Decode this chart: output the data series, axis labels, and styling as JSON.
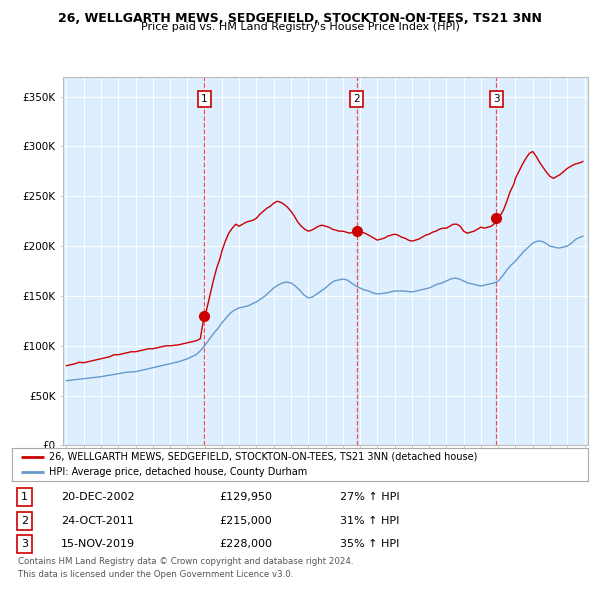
{
  "title": "26, WELLGARTH MEWS, SEDGEFIELD, STOCKTON-ON-TEES, TS21 3NN",
  "subtitle": "Price paid vs. HM Land Registry's House Price Index (HPI)",
  "legend_line1": "26, WELLGARTH MEWS, SEDGEFIELD, STOCKTON-ON-TEES, TS21 3NN (detached house)",
  "legend_line2": "HPI: Average price, detached house, County Durham",
  "footer1": "Contains HM Land Registry data © Crown copyright and database right 2024.",
  "footer2": "This data is licensed under the Open Government Licence v3.0.",
  "ylim": [
    0,
    370000
  ],
  "yticks": [
    0,
    50000,
    100000,
    150000,
    200000,
    250000,
    300000,
    350000
  ],
  "ytick_labels": [
    "£0",
    "£50K",
    "£100K",
    "£150K",
    "£200K",
    "£250K",
    "£300K",
    "£350K"
  ],
  "sale_color": "#cc0000",
  "hpi_color": "#6699cc",
  "bg_color": "#ddeeff",
  "vline_color": "#ee3333",
  "transactions": [
    {
      "num": 1,
      "date_label": "20-DEC-2002",
      "date_x": 2002.97,
      "price": 129950,
      "pct": "27%",
      "direction": "↑"
    },
    {
      "num": 2,
      "date_label": "24-OCT-2011",
      "date_x": 2011.81,
      "price": 215000,
      "pct": "31%",
      "direction": "↑"
    },
    {
      "num": 3,
      "date_label": "15-NOV-2019",
      "date_x": 2019.88,
      "price": 228000,
      "pct": "35%",
      "direction": "↑"
    }
  ],
  "sale_prices": [
    [
      1995.0,
      80000
    ],
    [
      1995.25,
      81000
    ],
    [
      1995.5,
      82000
    ],
    [
      1995.75,
      83500
    ],
    [
      1996.0,
      83000
    ],
    [
      1996.25,
      84000
    ],
    [
      1996.5,
      85000
    ],
    [
      1996.75,
      86000
    ],
    [
      1997.0,
      87000
    ],
    [
      1997.25,
      88000
    ],
    [
      1997.5,
      89000
    ],
    [
      1997.75,
      91000
    ],
    [
      1998.0,
      91000
    ],
    [
      1998.25,
      92000
    ],
    [
      1998.5,
      93000
    ],
    [
      1998.75,
      94000
    ],
    [
      1999.0,
      94000
    ],
    [
      1999.25,
      95000
    ],
    [
      1999.5,
      96000
    ],
    [
      1999.75,
      97000
    ],
    [
      2000.0,
      97000
    ],
    [
      2000.25,
      98000
    ],
    [
      2000.5,
      99000
    ],
    [
      2000.75,
      100000
    ],
    [
      2001.0,
      100000
    ],
    [
      2001.25,
      100500
    ],
    [
      2001.5,
      101000
    ],
    [
      2001.75,
      102000
    ],
    [
      2002.0,
      103000
    ],
    [
      2002.25,
      104000
    ],
    [
      2002.5,
      105000
    ],
    [
      2002.75,
      107000
    ],
    [
      2002.97,
      129950
    ],
    [
      2003.1,
      135000
    ],
    [
      2003.3,
      150000
    ],
    [
      2003.5,
      165000
    ],
    [
      2003.7,
      178000
    ],
    [
      2003.9,
      188000
    ],
    [
      2004.0,
      195000
    ],
    [
      2004.2,
      205000
    ],
    [
      2004.4,
      213000
    ],
    [
      2004.6,
      218000
    ],
    [
      2004.8,
      222000
    ],
    [
      2005.0,
      220000
    ],
    [
      2005.2,
      222000
    ],
    [
      2005.4,
      224000
    ],
    [
      2005.6,
      225000
    ],
    [
      2005.8,
      226000
    ],
    [
      2006.0,
      228000
    ],
    [
      2006.2,
      232000
    ],
    [
      2006.4,
      235000
    ],
    [
      2006.6,
      238000
    ],
    [
      2006.8,
      240000
    ],
    [
      2007.0,
      243000
    ],
    [
      2007.2,
      245000
    ],
    [
      2007.4,
      244000
    ],
    [
      2007.6,
      242000
    ],
    [
      2007.8,
      239000
    ],
    [
      2008.0,
      235000
    ],
    [
      2008.2,
      230000
    ],
    [
      2008.4,
      224000
    ],
    [
      2008.6,
      220000
    ],
    [
      2008.8,
      217000
    ],
    [
      2009.0,
      215000
    ],
    [
      2009.2,
      216000
    ],
    [
      2009.4,
      218000
    ],
    [
      2009.6,
      220000
    ],
    [
      2009.8,
      221000
    ],
    [
      2010.0,
      220000
    ],
    [
      2010.2,
      219000
    ],
    [
      2010.4,
      217000
    ],
    [
      2010.6,
      216000
    ],
    [
      2010.8,
      215000
    ],
    [
      2011.0,
      215000
    ],
    [
      2011.2,
      214000
    ],
    [
      2011.4,
      213000
    ],
    [
      2011.6,
      214000
    ],
    [
      2011.81,
      215000
    ],
    [
      2012.0,
      215000
    ],
    [
      2012.2,
      213500
    ],
    [
      2012.4,
      212000
    ],
    [
      2012.6,
      210000
    ],
    [
      2012.8,
      208000
    ],
    [
      2013.0,
      206000
    ],
    [
      2013.2,
      207000
    ],
    [
      2013.4,
      208000
    ],
    [
      2013.6,
      210000
    ],
    [
      2013.8,
      211000
    ],
    [
      2014.0,
      212000
    ],
    [
      2014.2,
      211000
    ],
    [
      2014.4,
      209000
    ],
    [
      2014.6,
      208000
    ],
    [
      2014.8,
      206000
    ],
    [
      2015.0,
      205000
    ],
    [
      2015.2,
      206000
    ],
    [
      2015.4,
      207000
    ],
    [
      2015.6,
      209000
    ],
    [
      2015.8,
      211000
    ],
    [
      2016.0,
      212000
    ],
    [
      2016.2,
      214000
    ],
    [
      2016.4,
      215000
    ],
    [
      2016.6,
      217000
    ],
    [
      2016.8,
      218000
    ],
    [
      2017.0,
      218000
    ],
    [
      2017.2,
      220000
    ],
    [
      2017.4,
      222000
    ],
    [
      2017.6,
      222000
    ],
    [
      2017.8,
      220000
    ],
    [
      2018.0,
      215000
    ],
    [
      2018.2,
      213000
    ],
    [
      2018.4,
      214000
    ],
    [
      2018.6,
      215000
    ],
    [
      2018.8,
      217000
    ],
    [
      2019.0,
      219000
    ],
    [
      2019.2,
      218000
    ],
    [
      2019.4,
      219000
    ],
    [
      2019.6,
      220000
    ],
    [
      2019.75,
      222000
    ],
    [
      2019.88,
      228000
    ],
    [
      2020.1,
      230000
    ],
    [
      2020.3,
      236000
    ],
    [
      2020.5,
      245000
    ],
    [
      2020.7,
      255000
    ],
    [
      2020.9,
      262000
    ],
    [
      2021.0,
      268000
    ],
    [
      2021.2,
      275000
    ],
    [
      2021.4,
      282000
    ],
    [
      2021.6,
      288000
    ],
    [
      2021.8,
      293000
    ],
    [
      2022.0,
      295000
    ],
    [
      2022.2,
      290000
    ],
    [
      2022.4,
      284000
    ],
    [
      2022.6,
      279000
    ],
    [
      2022.8,
      274000
    ],
    [
      2023.0,
      270000
    ],
    [
      2023.2,
      268000
    ],
    [
      2023.4,
      270000
    ],
    [
      2023.6,
      272000
    ],
    [
      2023.8,
      275000
    ],
    [
      2024.0,
      278000
    ],
    [
      2024.2,
      280000
    ],
    [
      2024.4,
      282000
    ],
    [
      2024.6,
      283000
    ],
    [
      2024.8,
      284000
    ],
    [
      2024.9,
      285000
    ]
  ],
  "hpi_prices": [
    [
      1995.0,
      65000
    ],
    [
      1995.25,
      65500
    ],
    [
      1995.5,
      66000
    ],
    [
      1995.75,
      66500
    ],
    [
      1996.0,
      67000
    ],
    [
      1996.25,
      67500
    ],
    [
      1996.5,
      68000
    ],
    [
      1996.75,
      68500
    ],
    [
      1997.0,
      69000
    ],
    [
      1997.25,
      69800
    ],
    [
      1997.5,
      70500
    ],
    [
      1997.75,
      71200
    ],
    [
      1998.0,
      72000
    ],
    [
      1998.25,
      72800
    ],
    [
      1998.5,
      73500
    ],
    [
      1998.75,
      73800
    ],
    [
      1999.0,
      74000
    ],
    [
      1999.25,
      75000
    ],
    [
      1999.5,
      76000
    ],
    [
      1999.75,
      77000
    ],
    [
      2000.0,
      78000
    ],
    [
      2000.25,
      79000
    ],
    [
      2000.5,
      80000
    ],
    [
      2000.75,
      81000
    ],
    [
      2001.0,
      82000
    ],
    [
      2001.25,
      83000
    ],
    [
      2001.5,
      84000
    ],
    [
      2001.75,
      85500
    ],
    [
      2002.0,
      87000
    ],
    [
      2002.25,
      89000
    ],
    [
      2002.5,
      91000
    ],
    [
      2002.75,
      95000
    ],
    [
      2003.0,
      100000
    ],
    [
      2003.25,
      106000
    ],
    [
      2003.5,
      112000
    ],
    [
      2003.75,
      117000
    ],
    [
      2004.0,
      123000
    ],
    [
      2004.25,
      128000
    ],
    [
      2004.5,
      133000
    ],
    [
      2004.75,
      136000
    ],
    [
      2005.0,
      138000
    ],
    [
      2005.25,
      139000
    ],
    [
      2005.5,
      140000
    ],
    [
      2005.75,
      142000
    ],
    [
      2006.0,
      144000
    ],
    [
      2006.25,
      147000
    ],
    [
      2006.5,
      150000
    ],
    [
      2006.75,
      154000
    ],
    [
      2007.0,
      158000
    ],
    [
      2007.25,
      161000
    ],
    [
      2007.5,
      163000
    ],
    [
      2007.75,
      164000
    ],
    [
      2008.0,
      163000
    ],
    [
      2008.25,
      160000
    ],
    [
      2008.5,
      156000
    ],
    [
      2008.75,
      151000
    ],
    [
      2009.0,
      148000
    ],
    [
      2009.25,
      149000
    ],
    [
      2009.5,
      152000
    ],
    [
      2009.75,
      155000
    ],
    [
      2010.0,
      158000
    ],
    [
      2010.25,
      162000
    ],
    [
      2010.5,
      165000
    ],
    [
      2010.75,
      166000
    ],
    [
      2011.0,
      167000
    ],
    [
      2011.25,
      166000
    ],
    [
      2011.5,
      163000
    ],
    [
      2011.75,
      160000
    ],
    [
      2012.0,
      158000
    ],
    [
      2012.25,
      156000
    ],
    [
      2012.5,
      155000
    ],
    [
      2012.75,
      153000
    ],
    [
      2013.0,
      152000
    ],
    [
      2013.25,
      152500
    ],
    [
      2013.5,
      153000
    ],
    [
      2013.75,
      154000
    ],
    [
      2014.0,
      155000
    ],
    [
      2014.25,
      155000
    ],
    [
      2014.5,
      155000
    ],
    [
      2014.75,
      154500
    ],
    [
      2015.0,
      154000
    ],
    [
      2015.25,
      155000
    ],
    [
      2015.5,
      156000
    ],
    [
      2015.75,
      157000
    ],
    [
      2016.0,
      158000
    ],
    [
      2016.25,
      160000
    ],
    [
      2016.5,
      162000
    ],
    [
      2016.75,
      163000
    ],
    [
      2017.0,
      165000
    ],
    [
      2017.25,
      167000
    ],
    [
      2017.5,
      168000
    ],
    [
      2017.75,
      167000
    ],
    [
      2018.0,
      165000
    ],
    [
      2018.25,
      163000
    ],
    [
      2018.5,
      162000
    ],
    [
      2018.75,
      161000
    ],
    [
      2019.0,
      160000
    ],
    [
      2019.25,
      161000
    ],
    [
      2019.5,
      162000
    ],
    [
      2019.75,
      163000
    ],
    [
      2020.0,
      165000
    ],
    [
      2020.25,
      170000
    ],
    [
      2020.5,
      176000
    ],
    [
      2020.75,
      181000
    ],
    [
      2021.0,
      185000
    ],
    [
      2021.25,
      190000
    ],
    [
      2021.5,
      195000
    ],
    [
      2021.75,
      199000
    ],
    [
      2022.0,
      203000
    ],
    [
      2022.25,
      205000
    ],
    [
      2022.5,
      205000
    ],
    [
      2022.75,
      203000
    ],
    [
      2023.0,
      200000
    ],
    [
      2023.25,
      199000
    ],
    [
      2023.5,
      198000
    ],
    [
      2023.75,
      199000
    ],
    [
      2024.0,
      200000
    ],
    [
      2024.25,
      203000
    ],
    [
      2024.5,
      207000
    ],
    [
      2024.75,
      209000
    ],
    [
      2024.9,
      210000
    ]
  ],
  "xlim": [
    1994.8,
    2025.2
  ],
  "xticks": [
    1995,
    1996,
    1997,
    1998,
    1999,
    2000,
    2001,
    2002,
    2003,
    2004,
    2005,
    2006,
    2007,
    2008,
    2009,
    2010,
    2011,
    2012,
    2013,
    2014,
    2015,
    2016,
    2017,
    2018,
    2019,
    2020,
    2021,
    2022,
    2023,
    2024,
    2025
  ]
}
